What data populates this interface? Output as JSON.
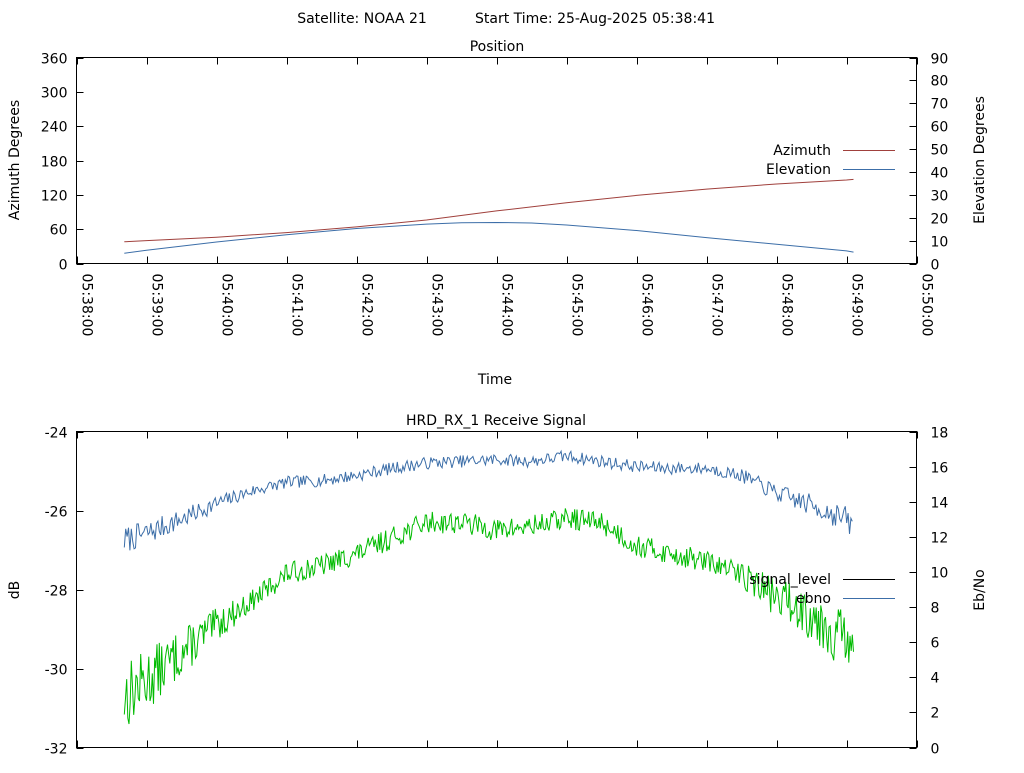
{
  "header": {
    "satellite": "Satellite: NOAA 21",
    "start_time": "Start Time: 25-Aug-2025 05:38:41"
  },
  "chart_data": [
    {
      "type": "line",
      "title": "Position",
      "xlabel": "Time",
      "ylabel_left": "Azimuth Degrees",
      "ylabel_right": "Elevation Degrees",
      "xlim": [
        "05:38:00",
        "05:50:00"
      ],
      "x_ticks": [
        "05:38:00",
        "05:39:00",
        "05:40:00",
        "05:41:00",
        "05:42:00",
        "05:43:00",
        "05:44:00",
        "05:45:00",
        "05:46:00",
        "05:47:00",
        "05:48:00",
        "05:49:00",
        "05:50:00"
      ],
      "ylim_left": [
        0,
        360
      ],
      "y_ticks_left": [
        0,
        60,
        120,
        180,
        240,
        300,
        360
      ],
      "ylim_right": [
        0,
        90
      ],
      "y_ticks_right": [
        0,
        10,
        20,
        30,
        40,
        50,
        60,
        70,
        80,
        90
      ],
      "grid": false,
      "legend": "right",
      "series": [
        {
          "name": "Azimuth",
          "axis": "left",
          "color": "#a0403c",
          "x": [
            "05:38:41",
            "05:39:00",
            "05:40:00",
            "05:41:00",
            "05:42:00",
            "05:43:00",
            "05:44:00",
            "05:45:00",
            "05:46:00",
            "05:47:00",
            "05:48:00",
            "05:49:00",
            "05:49:06"
          ],
          "values": [
            38,
            40,
            46,
            54,
            64,
            76,
            92,
            106,
            119,
            130,
            139,
            146,
            147
          ]
        },
        {
          "name": "Elevation",
          "axis": "right",
          "color": "#3c6ea8",
          "x": [
            "05:38:41",
            "05:39:00",
            "05:40:00",
            "05:41:00",
            "05:42:00",
            "05:43:00",
            "05:43:30",
            "05:44:00",
            "05:44:30",
            "05:45:00",
            "05:46:00",
            "05:47:00",
            "05:48:00",
            "05:49:00",
            "05:49:06"
          ],
          "values": [
            4.5,
            5.8,
            9.4,
            12.6,
            15.3,
            17.2,
            17.8,
            17.9,
            17.7,
            16.8,
            14.4,
            11.3,
            8.4,
            5.5,
            5.0
          ]
        }
      ]
    },
    {
      "type": "line",
      "title": "HRD_RX_1 Receive Signal",
      "xlabel": "",
      "ylabel_left": "dB",
      "ylabel_right": "Eb/No",
      "ylim_left": [
        -32,
        -24
      ],
      "y_ticks_left": [
        -32,
        -30,
        -28,
        -26,
        -24
      ],
      "ylim_right": [
        0,
        18
      ],
      "y_ticks_right": [
        0,
        2,
        4,
        6,
        8,
        10,
        12,
        14,
        16,
        18
      ],
      "grid": false,
      "legend": "right",
      "series": [
        {
          "name": "signal_level",
          "axis": "left",
          "color": "#000000",
          "legend_only": true
        },
        {
          "name": "ebno",
          "axis": "right",
          "color": "#3c6ea8",
          "x": [
            "05:38:41",
            "05:39:00",
            "05:39:30",
            "05:40:00",
            "05:40:30",
            "05:41:00",
            "05:41:30",
            "05:42:00",
            "05:42:30",
            "05:43:00",
            "05:43:30",
            "05:44:00",
            "05:44:30",
            "05:45:00",
            "05:45:30",
            "05:46:00",
            "05:46:30",
            "05:47:00",
            "05:47:30",
            "05:48:00",
            "05:48:30",
            "05:49:00",
            "05:49:06"
          ],
          "values": [
            11.8,
            12.2,
            13.0,
            13.9,
            14.6,
            15.1,
            15.2,
            15.5,
            15.9,
            16.2,
            16.3,
            16.4,
            16.3,
            16.6,
            16.3,
            16.0,
            15.9,
            15.9,
            15.5,
            14.5,
            13.8,
            13.0,
            12.5
          ]
        },
        {
          "name": "",
          "axis": "left",
          "color": "#00bb00",
          "x": [
            "05:38:41",
            "05:39:00",
            "05:39:30",
            "05:40:00",
            "05:40:30",
            "05:41:00",
            "05:41:30",
            "05:42:00",
            "05:42:30",
            "05:43:00",
            "05:43:30",
            "05:44:00",
            "05:44:30",
            "05:45:00",
            "05:45:30",
            "05:46:00",
            "05:46:30",
            "05:47:00",
            "05:47:30",
            "05:48:00",
            "05:48:30",
            "05:49:00",
            "05:49:06"
          ],
          "values": [
            -30.7,
            -30.3,
            -29.6,
            -28.9,
            -28.3,
            -27.6,
            -27.4,
            -27.1,
            -26.7,
            -26.3,
            -26.3,
            -26.5,
            -26.4,
            -26.2,
            -26.3,
            -26.9,
            -27.1,
            -27.3,
            -27.6,
            -28.2,
            -28.6,
            -29.3,
            -30.0
          ]
        }
      ]
    }
  ]
}
